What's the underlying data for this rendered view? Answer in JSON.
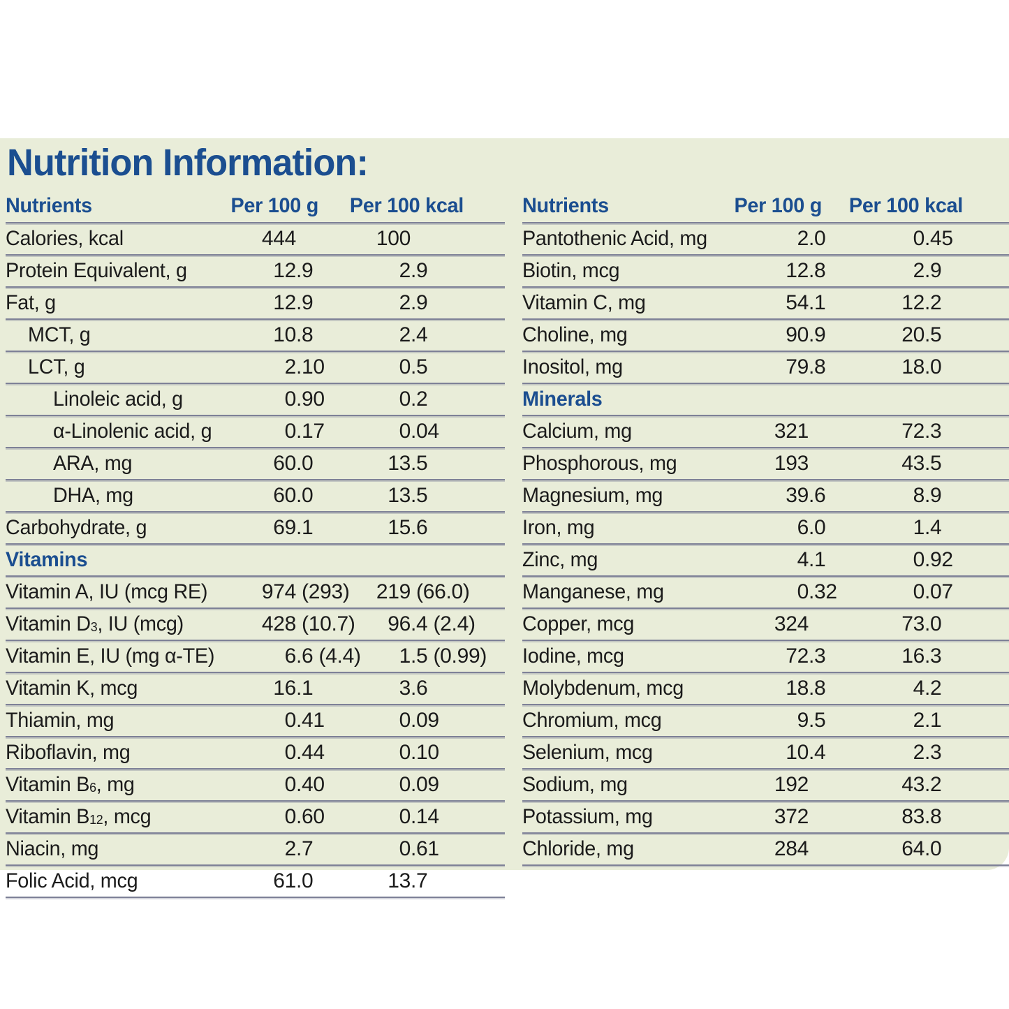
{
  "palette": {
    "page_bg": "#ffffff",
    "panel_bg": "#e9edd9",
    "accent_blue": "#1b4e90",
    "text_color": "#1b1b1b",
    "rule_line": "#7e8197"
  },
  "title": "Nutrition Information:",
  "columns": {
    "nutrients": "Nutrients",
    "per_100_g": "Per 100 g",
    "per_100_kcal": "Per 100 kcal"
  },
  "tables": [
    {
      "id": "left",
      "rows": [
        {
          "label": "Calories, kcal",
          "indent": 0,
          "per_100_g": "444",
          "per_100_kcal": "100"
        },
        {
          "label": "Protein Equivalent, g",
          "indent": 0,
          "per_100_g": "12.9",
          "per_100_kcal": "2.9"
        },
        {
          "label": "Fat, g",
          "indent": 0,
          "per_100_g": "12.9",
          "per_100_kcal": "2.9"
        },
        {
          "label": "MCT, g",
          "indent": 1,
          "per_100_g": "10.8",
          "per_100_kcal": "2.4"
        },
        {
          "label": "LCT, g",
          "indent": 1,
          "per_100_g": "2.10",
          "per_100_kcal": "0.5"
        },
        {
          "label": "Linoleic acid, g",
          "indent": 2,
          "per_100_g": "0.90",
          "per_100_kcal": "0.2"
        },
        {
          "label": "α-Linolenic acid, g",
          "indent": 2,
          "per_100_g": "0.17",
          "per_100_kcal": "0.04"
        },
        {
          "label": "ARA, mg",
          "indent": 2,
          "per_100_g": "60.0",
          "per_100_kcal": "13.5"
        },
        {
          "label": "DHA, mg",
          "indent": 2,
          "per_100_g": "60.0",
          "per_100_kcal": "13.5"
        },
        {
          "label": "Carbohydrate, g",
          "indent": 0,
          "per_100_g": "69.1",
          "per_100_kcal": "15.6"
        },
        {
          "label": "Vitamins",
          "section": true
        },
        {
          "label": "Vitamin A, IU (mcg RE)",
          "indent": 0,
          "per_100_g": "974 (293)",
          "per_100_kcal": "219 (66.0)"
        },
        {
          "label": "Vitamin D~3~, IU (mcg)",
          "indent": 0,
          "per_100_g": "428 (10.7)",
          "per_100_kcal": "96.4 (2.4)"
        },
        {
          "label": "Vitamin E, IU (mg α-TE)",
          "indent": 0,
          "per_100_g": "6.6 (4.4)",
          "per_100_kcal": "1.5 (0.99)"
        },
        {
          "label": "Vitamin K, mcg",
          "indent": 0,
          "per_100_g": "16.1",
          "per_100_kcal": "3.6"
        },
        {
          "label": "Thiamin, mg",
          "indent": 0,
          "per_100_g": "0.41",
          "per_100_kcal": "0.09"
        },
        {
          "label": "Riboflavin, mg",
          "indent": 0,
          "per_100_g": "0.44",
          "per_100_kcal": "0.10"
        },
        {
          "label": "Vitamin B~6~, mg",
          "indent": 0,
          "per_100_g": "0.40",
          "per_100_kcal": "0.09"
        },
        {
          "label": "Vitamin B~12~, mcg",
          "indent": 0,
          "per_100_g": "0.60",
          "per_100_kcal": "0.14"
        },
        {
          "label": "Niacin, mg",
          "indent": 0,
          "per_100_g": "2.7",
          "per_100_kcal": "0.61"
        },
        {
          "label": "Folic Acid, mcg",
          "indent": 0,
          "per_100_g": "61.0",
          "per_100_kcal": "13.7"
        }
      ]
    },
    {
      "id": "right",
      "rows": [
        {
          "label": "Pantothenic Acid, mg",
          "indent": 0,
          "per_100_g": "2.0",
          "per_100_kcal": "0.45"
        },
        {
          "label": "Biotin, mcg",
          "indent": 0,
          "per_100_g": "12.8",
          "per_100_kcal": "2.9"
        },
        {
          "label": "Vitamin C, mg",
          "indent": 0,
          "per_100_g": "54.1",
          "per_100_kcal": "12.2"
        },
        {
          "label": "Choline, mg",
          "indent": 0,
          "per_100_g": "90.9",
          "per_100_kcal": "20.5"
        },
        {
          "label": "Inositol, mg",
          "indent": 0,
          "per_100_g": "79.8",
          "per_100_kcal": "18.0"
        },
        {
          "label": "Minerals",
          "section": true
        },
        {
          "label": "Calcium, mg",
          "indent": 0,
          "per_100_g": "321",
          "per_100_kcal": "72.3"
        },
        {
          "label": "Phosphorous, mg",
          "indent": 0,
          "per_100_g": "193",
          "per_100_kcal": "43.5"
        },
        {
          "label": "Magnesium, mg",
          "indent": 0,
          "per_100_g": "39.6",
          "per_100_kcal": "8.9"
        },
        {
          "label": "Iron, mg",
          "indent": 0,
          "per_100_g": "6.0",
          "per_100_kcal": "1.4"
        },
        {
          "label": "Zinc, mg",
          "indent": 0,
          "per_100_g": "4.1",
          "per_100_kcal": "0.92"
        },
        {
          "label": "Manganese, mg",
          "indent": 0,
          "per_100_g": "0.32",
          "per_100_kcal": "0.07"
        },
        {
          "label": "Copper, mcg",
          "indent": 0,
          "per_100_g": "324",
          "per_100_kcal": "73.0"
        },
        {
          "label": "Iodine, mcg",
          "indent": 0,
          "per_100_g": "72.3",
          "per_100_kcal": "16.3"
        },
        {
          "label": "Molybdenum, mcg",
          "indent": 0,
          "per_100_g": "18.8",
          "per_100_kcal": "4.2"
        },
        {
          "label": "Chromium, mcg",
          "indent": 0,
          "per_100_g": "9.5",
          "per_100_kcal": "2.1"
        },
        {
          "label": "Selenium, mcg",
          "indent": 0,
          "per_100_g": "10.4",
          "per_100_kcal": "2.3"
        },
        {
          "label": "Sodium, mg",
          "indent": 0,
          "per_100_g": "192",
          "per_100_kcal": "43.2"
        },
        {
          "label": "Potassium, mg",
          "indent": 0,
          "per_100_g": "372",
          "per_100_kcal": "83.8"
        },
        {
          "label": "Chloride, mg",
          "indent": 0,
          "per_100_g": "284",
          "per_100_kcal": "64.0"
        }
      ]
    }
  ]
}
